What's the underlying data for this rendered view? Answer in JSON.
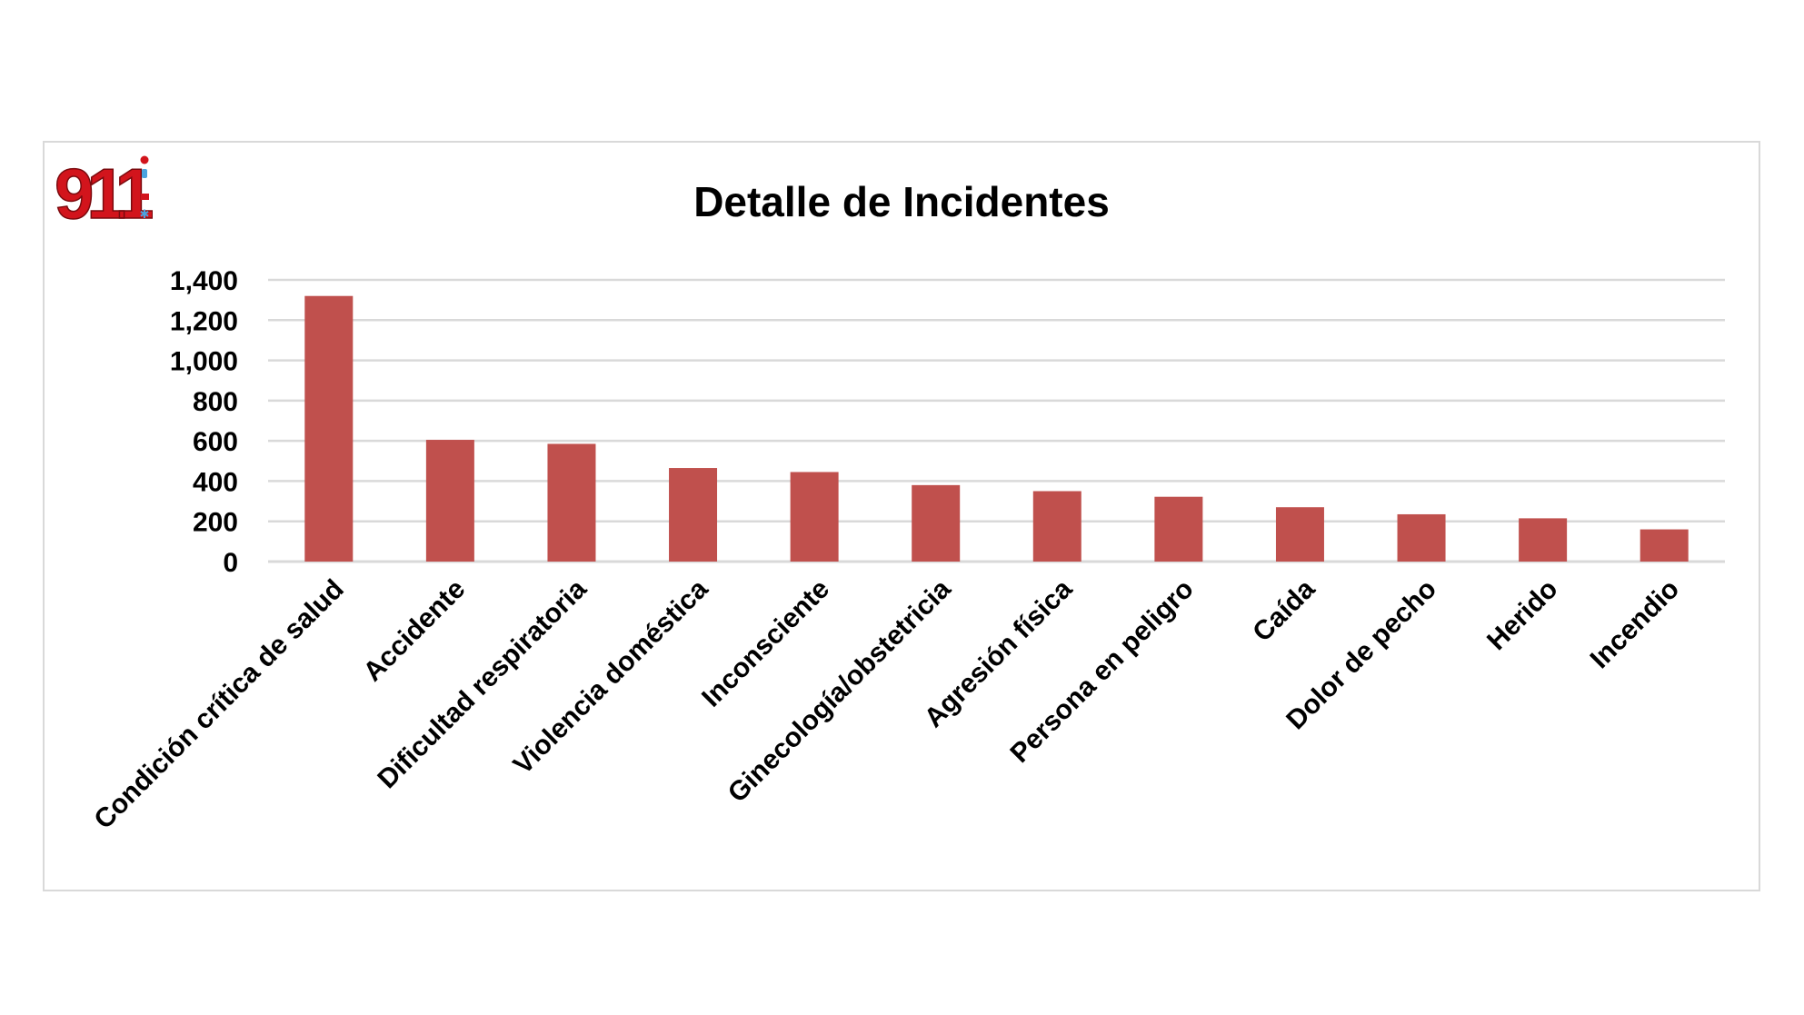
{
  "logo": {
    "text": "911"
  },
  "chart_data": {
    "type": "bar",
    "title": "Detalle de Incidentes",
    "categories": [
      "Condición crítica de salud",
      "Accidente",
      "Dificultad respiratoria",
      "Violencia doméstica",
      "Inconsciente",
      "Ginecología/obstetricia",
      "Agresión física",
      "Persona en peligro",
      "Caída",
      "Dolor de pecho",
      "Herido",
      "Incendio"
    ],
    "values": [
      1320,
      605,
      585,
      465,
      445,
      380,
      350,
      322,
      270,
      235,
      215,
      160
    ],
    "ylim": [
      0,
      1400
    ],
    "yticks": [
      "0",
      "200",
      "400",
      "600",
      "800",
      "1,000",
      "1,200",
      "1,400"
    ],
    "ytick_values": [
      0,
      200,
      400,
      600,
      800,
      1000,
      1200,
      1400
    ],
    "grid": true,
    "bar_color": "#c0504d",
    "grid_color": "#d9d9d9"
  }
}
